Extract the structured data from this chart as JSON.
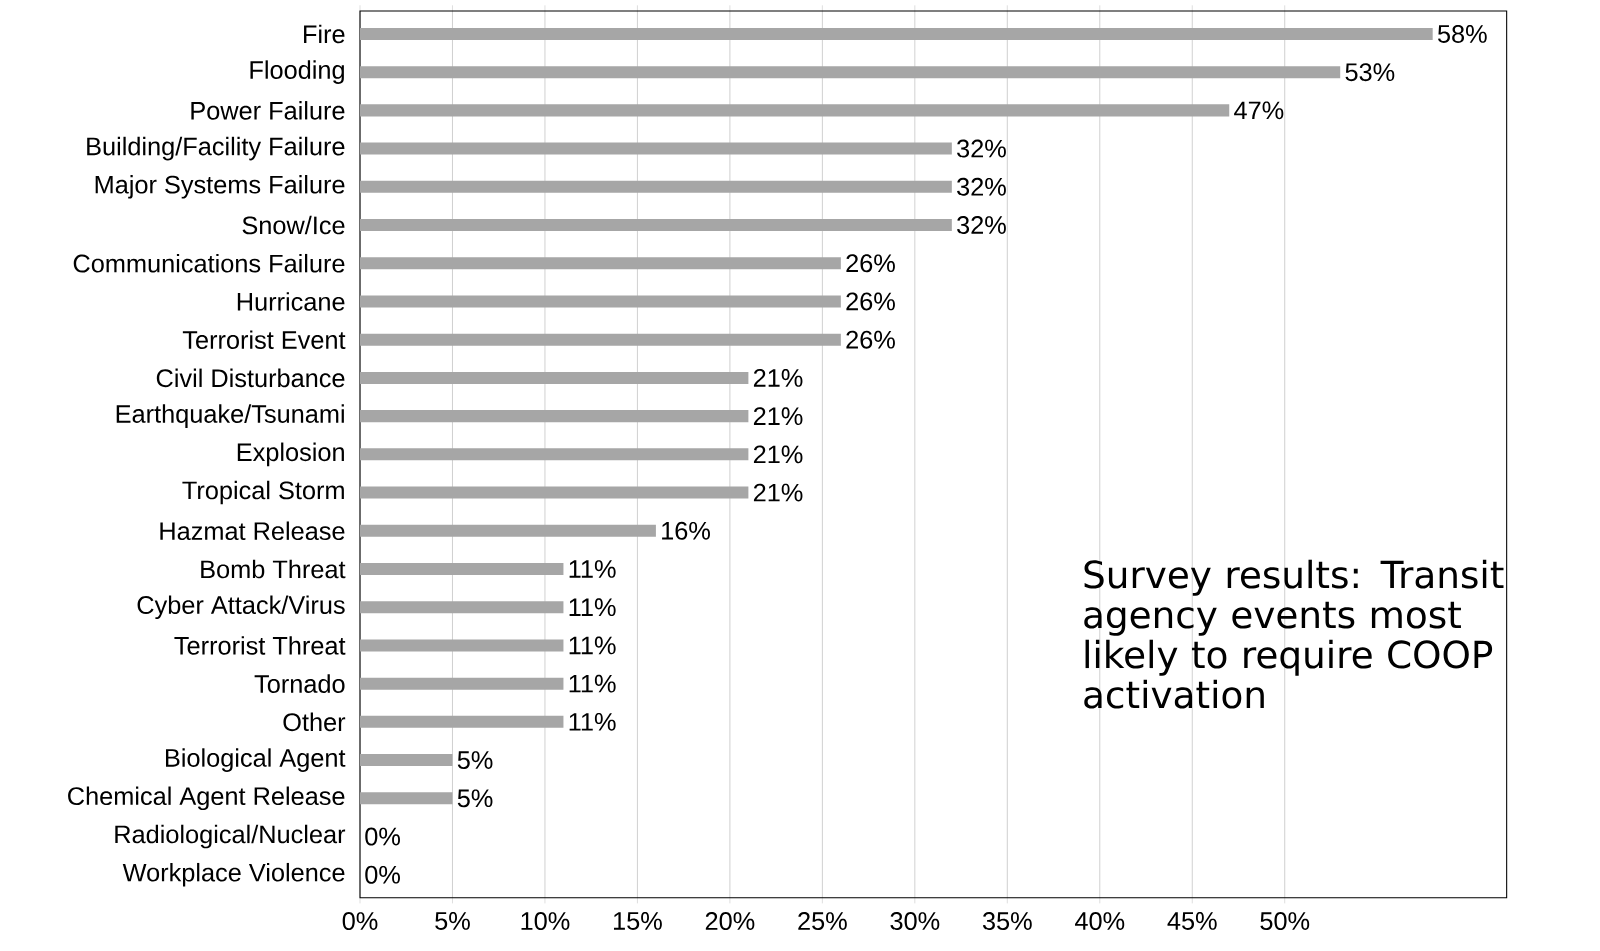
{
  "chart_data": {
    "type": "bar",
    "orientation": "horizontal",
    "categories": [
      "Fire",
      "Flooding",
      "Power Failure",
      "Building/Facility Failure",
      "Major Systems Failure",
      "Snow/Ice",
      "Communications Failure",
      "Hurricane",
      "Terrorist Event",
      "Civil Disturbance",
      "Earthquake/Tsunami",
      "Explosion",
      "Tropical Storm",
      "Hazmat Release",
      "Bomb Threat",
      "Cyber Attack/Virus",
      "Terrorist Threat",
      "Tornado",
      "Other",
      "Biological Agent",
      "Chemical Agent Release",
      "Radiological/Nuclear",
      "Workplace Violence"
    ],
    "values": [
      58,
      53,
      47,
      32,
      32,
      32,
      26,
      26,
      26,
      21,
      21,
      21,
      21,
      16,
      11,
      11,
      11,
      11,
      11,
      5,
      5,
      0,
      0
    ],
    "value_labels": [
      "58%",
      "53%",
      "47%",
      "32%",
      "32%",
      "32%",
      "26%",
      "26%",
      "26%",
      "21%",
      "21%",
      "21%",
      "21%",
      "16%",
      "11%",
      "11%",
      "11%",
      "11%",
      "11%",
      "5%",
      "5%",
      "0%",
      "0%"
    ],
    "color": "#a6a6a6",
    "xlim": [
      0,
      62
    ],
    "xticks": [
      {
        "value": 0,
        "label": "0%"
      },
      {
        "value": 5,
        "label": "5%"
      },
      {
        "value": 10,
        "label": "10%"
      },
      {
        "value": 15,
        "label": "15%"
      },
      {
        "value": 20,
        "label": "20%"
      },
      {
        "value": 25,
        "label": "25%"
      },
      {
        "value": 30,
        "label": "30%"
      },
      {
        "value": 35,
        "label": "35%"
      },
      {
        "value": 40,
        "label": "40%"
      },
      {
        "value": 45,
        "label": "45%"
      },
      {
        "value": 50,
        "label": "50%"
      }
    ],
    "grid": "x",
    "annotations": [
      "Survey results: Transit agency events most likely to require COOP activation"
    ]
  }
}
